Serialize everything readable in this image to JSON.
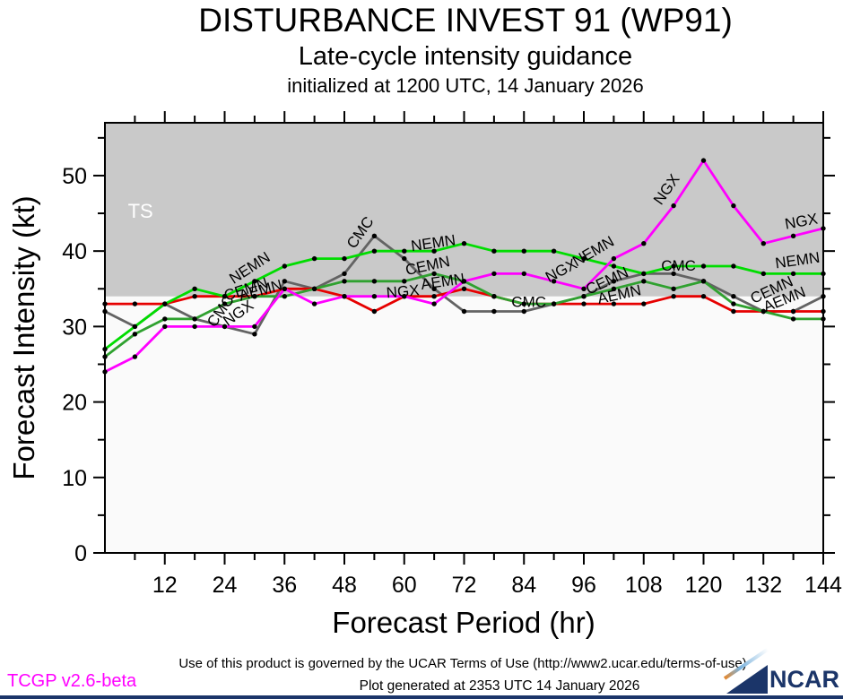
{
  "header": {
    "title": "DISTURBANCE INVEST 91 (WP91)",
    "subtitle": "Late-cycle intensity guidance",
    "init_line": "initialized at 1200 UTC, 14 January 2026"
  },
  "chart_data": {
    "type": "line",
    "title": "DISTURBANCE INVEST 91 (WP91)",
    "subtitle": "Late-cycle intensity guidance",
    "xlabel": "Forecast Period (hr)",
    "ylabel": "Forecast Intensity (kt)",
    "xlim": [
      0,
      144
    ],
    "ylim": [
      0,
      57
    ],
    "grid": false,
    "legend": "inline-line-labels",
    "xticks_major": [
      12,
      24,
      36,
      48,
      60,
      72,
      84,
      96,
      108,
      120,
      132,
      144
    ],
    "xticks_minor": [
      6,
      18,
      30,
      42,
      54,
      66,
      78,
      90,
      102,
      114,
      126,
      138
    ],
    "yticks_major": [
      0,
      10,
      20,
      30,
      40,
      50
    ],
    "yticks_minor": [
      5,
      15,
      25,
      35,
      45,
      55
    ],
    "plot_bg": "#FAFAFA",
    "border_color": "#000000",
    "marker_color": "#000000",
    "ts_band": {
      "threshold": 34,
      "label": "TS",
      "color": "#C9C9C9",
      "label_color": "#FFFFFF",
      "label_pos": {
        "hr": 4.6,
        "kt": 44.4
      }
    },
    "x": [
      0,
      6,
      12,
      18,
      24,
      30,
      36,
      42,
      48,
      54,
      60,
      66,
      72,
      78,
      84,
      90,
      96,
      102,
      108,
      114,
      120,
      126,
      132,
      138,
      144
    ],
    "series": [
      {
        "name": "CMC",
        "color": "#636363",
        "values": [
          32,
          30,
          33,
          31,
          30,
          29,
          36,
          35,
          37,
          42,
          39,
          35,
          32,
          32,
          32,
          33,
          34,
          36,
          37,
          37,
          36,
          34,
          32,
          32,
          34
        ]
      },
      {
        "name": "AEMN",
        "color": "#E60000",
        "values": [
          33,
          33,
          33,
          34,
          34,
          34,
          35,
          35,
          34,
          32,
          34,
          34,
          35,
          34,
          33,
          33,
          33,
          33,
          33,
          34,
          34,
          32,
          32,
          32,
          32
        ]
      },
      {
        "name": "CEMN",
        "color": "#2FA12F",
        "values": [
          26,
          29,
          31,
          31,
          33,
          34,
          34,
          35,
          36,
          36,
          36,
          37,
          36,
          34,
          33,
          33,
          34,
          35,
          36,
          35,
          36,
          33,
          32,
          31,
          31
        ]
      },
      {
        "name": "NEMN",
        "color": "#00DD00",
        "values": [
          27,
          30,
          33,
          35,
          34,
          36,
          38,
          39,
          39,
          40,
          40,
          40,
          41,
          40,
          40,
          40,
          39,
          38,
          37,
          38,
          38,
          38,
          37,
          37,
          37
        ]
      },
      {
        "name": "NGX",
        "color": "#FF00FF",
        "values": [
          24,
          26,
          30,
          30,
          30,
          30,
          35,
          33,
          34,
          34,
          34,
          33,
          36,
          37,
          37,
          36,
          35,
          39,
          41,
          46,
          52,
          46,
          41,
          42,
          43
        ]
      }
    ],
    "line_labels": [
      {
        "text": "CMC",
        "hr": 22.0,
        "kt": 29.8,
        "rot": -55
      },
      {
        "text": "NGX",
        "hr": 24.6,
        "kt": 30.0,
        "rot": -35
      },
      {
        "text": "NEMN",
        "hr": 25.8,
        "kt": 35.6,
        "rot": -33
      },
      {
        "text": "CEMN",
        "hr": 24.3,
        "kt": 33.4,
        "rot": -18
      },
      {
        "text": "AEMN",
        "hr": 27.2,
        "kt": 33.4,
        "rot": -15
      },
      {
        "text": "CMC",
        "hr": 50.0,
        "kt": 40.2,
        "rot": -55
      },
      {
        "text": "NEMN",
        "hr": 61.5,
        "kt": 40.0,
        "rot": -8
      },
      {
        "text": "CEMN",
        "hr": 60.5,
        "kt": 36.8,
        "rot": -12
      },
      {
        "text": "AEMN",
        "hr": 63.5,
        "kt": 34.9,
        "rot": -8
      },
      {
        "text": "NGX",
        "hr": 56.5,
        "kt": 33.8,
        "rot": -5
      },
      {
        "text": "CMC",
        "hr": 81.5,
        "kt": 32.6,
        "rot": 0
      },
      {
        "text": "NGX",
        "hr": 89.0,
        "kt": 35.8,
        "rot": -28
      },
      {
        "text": "NEMN",
        "hr": 94.5,
        "kt": 37.9,
        "rot": -30
      },
      {
        "text": "CEMN",
        "hr": 97.0,
        "kt": 34.2,
        "rot": -25
      },
      {
        "text": "AEMN",
        "hr": 99.0,
        "kt": 33.0,
        "rot": -12
      },
      {
        "text": "NGX",
        "hr": 111.5,
        "kt": 46.0,
        "rot": -55
      },
      {
        "text": "CMC",
        "hr": 111.5,
        "kt": 37.4,
        "rot": 0
      },
      {
        "text": "NGX",
        "hr": 136.5,
        "kt": 42.9,
        "rot": -10
      },
      {
        "text": "NEMN",
        "hr": 134.5,
        "kt": 37.7,
        "rot": -8
      },
      {
        "text": "CEMN",
        "hr": 130.0,
        "kt": 33.0,
        "rot": -25
      },
      {
        "text": "AEMN",
        "hr": 132.5,
        "kt": 31.9,
        "rot": -22
      }
    ]
  },
  "footer": {
    "terms": "Use of this product is governed by the UCAR Terms of Use (http://www2.ucar.edu/terms-of-use)",
    "generated": "Plot generated at 2353 UTC   14 January 2026",
    "version": "TCGP v2.6-beta",
    "version_color": "#FF00FF",
    "logo_text": "NCAR",
    "logo_color": "#1B3569"
  }
}
